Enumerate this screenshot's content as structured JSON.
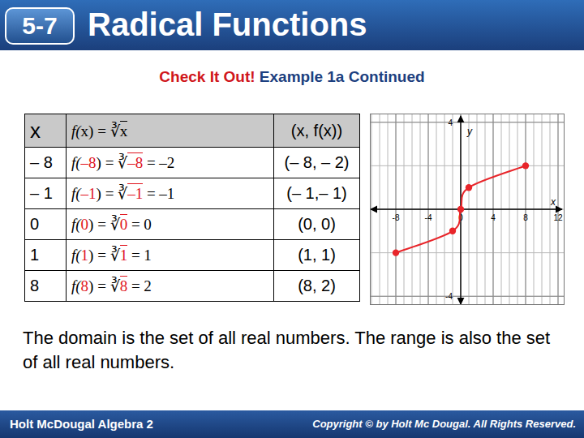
{
  "header": {
    "badge": "5-7",
    "title": "Radical Functions"
  },
  "subtitle": {
    "lead": "Check It Out!",
    "text": "Example 1a Continued"
  },
  "table": {
    "head": {
      "x": "x",
      "formula": [
        {
          "text": "f("
        },
        {
          "text": "x"
        },
        {
          "text": ") = ∛"
        },
        {
          "text": "x",
          "root": true
        }
      ],
      "point": "(x, f(x))"
    },
    "rows": [
      {
        "x": "– 8",
        "formula": [
          {
            "text": "f("
          },
          {
            "text": "–8",
            "color": "#e0141e"
          },
          {
            "text": ") = ∛"
          },
          {
            "text": "–8",
            "color": "#e0141e",
            "root": true
          },
          {
            "text": " = –2"
          }
        ],
        "point": "(– 8, – 2)"
      },
      {
        "x": "– 1",
        "formula": [
          {
            "text": "f("
          },
          {
            "text": "–1",
            "color": "#e0141e"
          },
          {
            "text": ") = ∛"
          },
          {
            "text": "–1",
            "color": "#e0141e",
            "root": true
          },
          {
            "text": " = –1"
          }
        ],
        "point": "(– 1,– 1)"
      },
      {
        "x": "0",
        "formula": [
          {
            "text": "f("
          },
          {
            "text": "0",
            "color": "#e0141e"
          },
          {
            "text": ") = ∛"
          },
          {
            "text": "0",
            "color": "#e0141e",
            "root": true
          },
          {
            "text": " = 0"
          }
        ],
        "point": "(0, 0)"
      },
      {
        "x": "1",
        "formula": [
          {
            "text": "f("
          },
          {
            "text": "1",
            "color": "#e0141e"
          },
          {
            "text": ") = ∛"
          },
          {
            "text": "1",
            "color": "#e0141e",
            "root": true
          },
          {
            "text": " = 1"
          }
        ],
        "point": "(1, 1)"
      },
      {
        "x": "8",
        "formula": [
          {
            "text": "f("
          },
          {
            "text": "8",
            "color": "#e0141e"
          },
          {
            "text": ") = ∛"
          },
          {
            "text": "8",
            "color": "#e0141e",
            "root": true
          },
          {
            "text": " = 2"
          }
        ],
        "point": "(8, 2)"
      }
    ]
  },
  "chart_data": {
    "type": "line",
    "x_label": "x",
    "y_label": "y",
    "x": [
      -8,
      -1,
      0,
      1,
      8
    ],
    "values": [
      -2,
      -1,
      0,
      1,
      2
    ],
    "color": "#e8252a",
    "marker": "circle",
    "xlim": [
      -11.2,
      12.8
    ],
    "xticks": [
      -8,
      -4,
      0,
      4,
      8,
      12
    ],
    "ylim": [
      -4.4,
      4.4
    ],
    "yticks": [
      -4,
      4
    ],
    "grid": true
  },
  "body": "The domain is the set of all real numbers. The range is also the set of all real numbers.",
  "footer": {
    "left": "Holt McDougal Algebra 2",
    "right": "Copyright © by Holt Mc Dougal. All Rights Reserved."
  }
}
